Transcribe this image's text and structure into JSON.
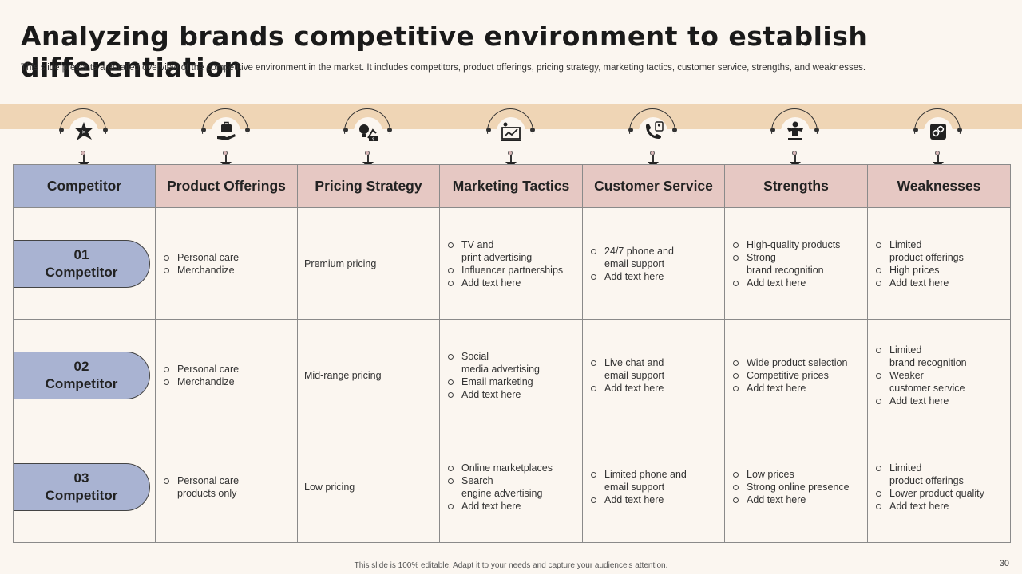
{
  "title": "Analyzing brands competitive environment to establish differentiation",
  "subtitle": "This slide presents a detailed overview of the competitive environment in the market. It includes competitors, product offerings, pricing strategy, marketing tactics, customer service, strengths, and weaknesses.",
  "headers": [
    "Competitor",
    "Product Offerings",
    "Pricing Strategy",
    "Marketing Tactics",
    "Customer Service",
    "Strengths",
    "Weaknesses"
  ],
  "icons": [
    "strategy-burst-icon",
    "briefcase-hand-icon",
    "idea-money-icon",
    "presentation-board-icon",
    "phone-user-icon",
    "strongman-icon",
    "broken-chain-icon"
  ],
  "rows": [
    {
      "num": "01",
      "label": "Competitor",
      "product": [
        "Personal care",
        "Merchandize"
      ],
      "pricing": "Premium pricing",
      "marketing": [
        "TV and\nprint advertising",
        "Influencer partnerships",
        "Add text here"
      ],
      "service": [
        "24/7 phone and\nemail support",
        "Add text here"
      ],
      "strengths": [
        "High-quality products",
        "Strong\nbrand recognition",
        "Add text here"
      ],
      "weaknesses": [
        "Limited\nproduct offerings",
        "High prices",
        "Add text here"
      ]
    },
    {
      "num": "02",
      "label": "Competitor",
      "product": [
        "Personal care",
        "Merchandize"
      ],
      "pricing": "Mid-range pricing",
      "marketing": [
        "Social\nmedia advertising",
        "Email marketing",
        "Add text here"
      ],
      "service": [
        "Live chat and\nemail support",
        "Add text here"
      ],
      "strengths": [
        "Wide product selection",
        "Competitive prices",
        "Add text here"
      ],
      "weaknesses": [
        "Limited\nbrand recognition",
        "Weaker\ncustomer service",
        "Add text here"
      ]
    },
    {
      "num": "03",
      "label": "Competitor",
      "product": [
        "Personal care\nproducts only"
      ],
      "pricing": "Low pricing",
      "marketing": [
        "Online marketplaces",
        "Search\nengine advertising",
        "Add text here"
      ],
      "service": [
        "Limited phone and\nemail support",
        "Add text here"
      ],
      "strengths": [
        "Low prices",
        "Strong online presence",
        "Add text here"
      ],
      "weaknesses": [
        "Limited\nproduct offerings",
        "Lower product quality",
        "Add text here"
      ]
    }
  ],
  "footer": "This slide is 100% editable.  Adapt it to your needs and capture your audience's attention.",
  "page_number": "30"
}
